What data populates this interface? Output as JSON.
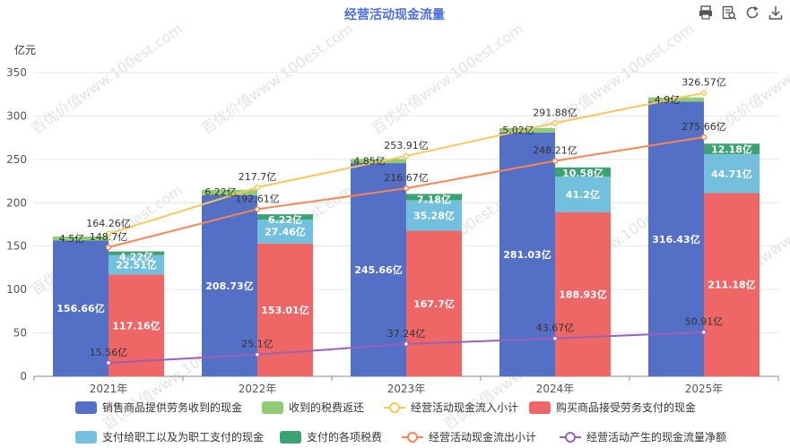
{
  "toolbar": {
    "icons": [
      "print-icon",
      "data-view-icon",
      "refresh-icon",
      "download-icon"
    ]
  },
  "watermark": "百优价值www.100est.com",
  "chart_data": {
    "type": "bar",
    "title": "经营活动现金流量",
    "ylabel": "亿元",
    "ylim": [
      0,
      350
    ],
    "yticks": [
      0,
      50,
      100,
      150,
      200,
      250,
      300,
      350
    ],
    "grid": true,
    "legend_position": "bottom",
    "categories": [
      "2021年",
      "2022年",
      "2023年",
      "2024年",
      "2025年"
    ],
    "stacks": [
      {
        "stack": "inflow",
        "series": [
          {
            "name": "销售商品提供劳务收到的现金",
            "color": "#5470c6",
            "values": [
              156.66,
              208.73,
              245.66,
              281.03,
              316.43
            ],
            "labels": [
              "156.66亿",
              "208.73亿",
              "245.66亿",
              "281.03亿",
              "316.43亿"
            ]
          },
          {
            "name": "收到的税费返还",
            "color": "#91cc75",
            "values": [
              4.5,
              6.22,
              4.85,
              5.02,
              4.9
            ],
            "labels": [
              "4.5亿",
              "6.22亿",
              "4.85亿",
              "5.02亿",
              "4.9亿"
            ]
          }
        ]
      },
      {
        "stack": "outflow",
        "series": [
          {
            "name": "购买商品接受劳务支付的现金",
            "color": "#ee6666",
            "values": [
              117.16,
              153.01,
              167.7,
              188.93,
              211.18
            ],
            "labels": [
              "117.16亿",
              "153.01亿",
              "167.7亿",
              "188.93亿",
              "211.18亿"
            ]
          },
          {
            "name": "支付给职工以及为职工支付的现金",
            "color": "#73c0de",
            "values": [
              22.51,
              27.46,
              35.28,
              41.2,
              44.71
            ],
            "labels": [
              "22.51亿",
              "27.46亿",
              "35.28亿",
              "41.2亿",
              "44.71亿"
            ]
          },
          {
            "name": "支付的各项税费",
            "color": "#3ba272",
            "values": [
              4.22,
              6.22,
              7.18,
              10.58,
              12.18
            ],
            "labels": [
              "4.22亿",
              "6.22亿",
              "7.18亿",
              "10.58亿",
              "12.18亿"
            ]
          }
        ]
      }
    ],
    "lines": [
      {
        "name": "经营活动现金流入小计",
        "color": "#fac858",
        "stack": "inflow",
        "values": [
          164.26,
          217.7,
          253.91,
          291.88,
          326.57
        ],
        "labels": [
          "164.26亿",
          "217.7亿",
          "253.91亿",
          "291.88亿",
          "326.57亿"
        ]
      },
      {
        "name": "经营活动现金流出小计",
        "color": "#fc8452",
        "stack": "outflow",
        "values": [
          148.7,
          192.61,
          216.67,
          248.21,
          275.66
        ],
        "labels": [
          "148.7亿",
          "192.61亿",
          "216.67亿",
          "248.21亿",
          "275.66亿"
        ]
      },
      {
        "name": "经营活动产生的现金流量净额",
        "color": "#9a60b4",
        "stack": "center",
        "values": [
          15.56,
          25.1,
          37.24,
          43.67,
          50.91
        ],
        "labels": [
          "15.56亿",
          "25.1亿",
          "37.24亿",
          "43.67亿",
          "50.91亿"
        ]
      }
    ],
    "legend": [
      {
        "name": "销售商品提供劳务收到的现金",
        "kind": "box",
        "color": "#5470c6"
      },
      {
        "name": "收到的税费返还",
        "kind": "box",
        "color": "#91cc75"
      },
      {
        "name": "经营活动现金流入小计",
        "kind": "line",
        "color": "#fac858"
      },
      {
        "name": "购买商品接受劳务支付的现金",
        "kind": "box",
        "color": "#ee6666"
      },
      {
        "name": "支付给职工以及为职工支付的现金",
        "kind": "box",
        "color": "#73c0de"
      },
      {
        "name": "支付的各项税费",
        "kind": "box",
        "color": "#3ba272"
      },
      {
        "name": "经营活动现金流出小计",
        "kind": "line",
        "color": "#fc8452"
      },
      {
        "name": "经营活动产生的现金流量净额",
        "kind": "line",
        "color": "#9a60b4"
      }
    ]
  }
}
